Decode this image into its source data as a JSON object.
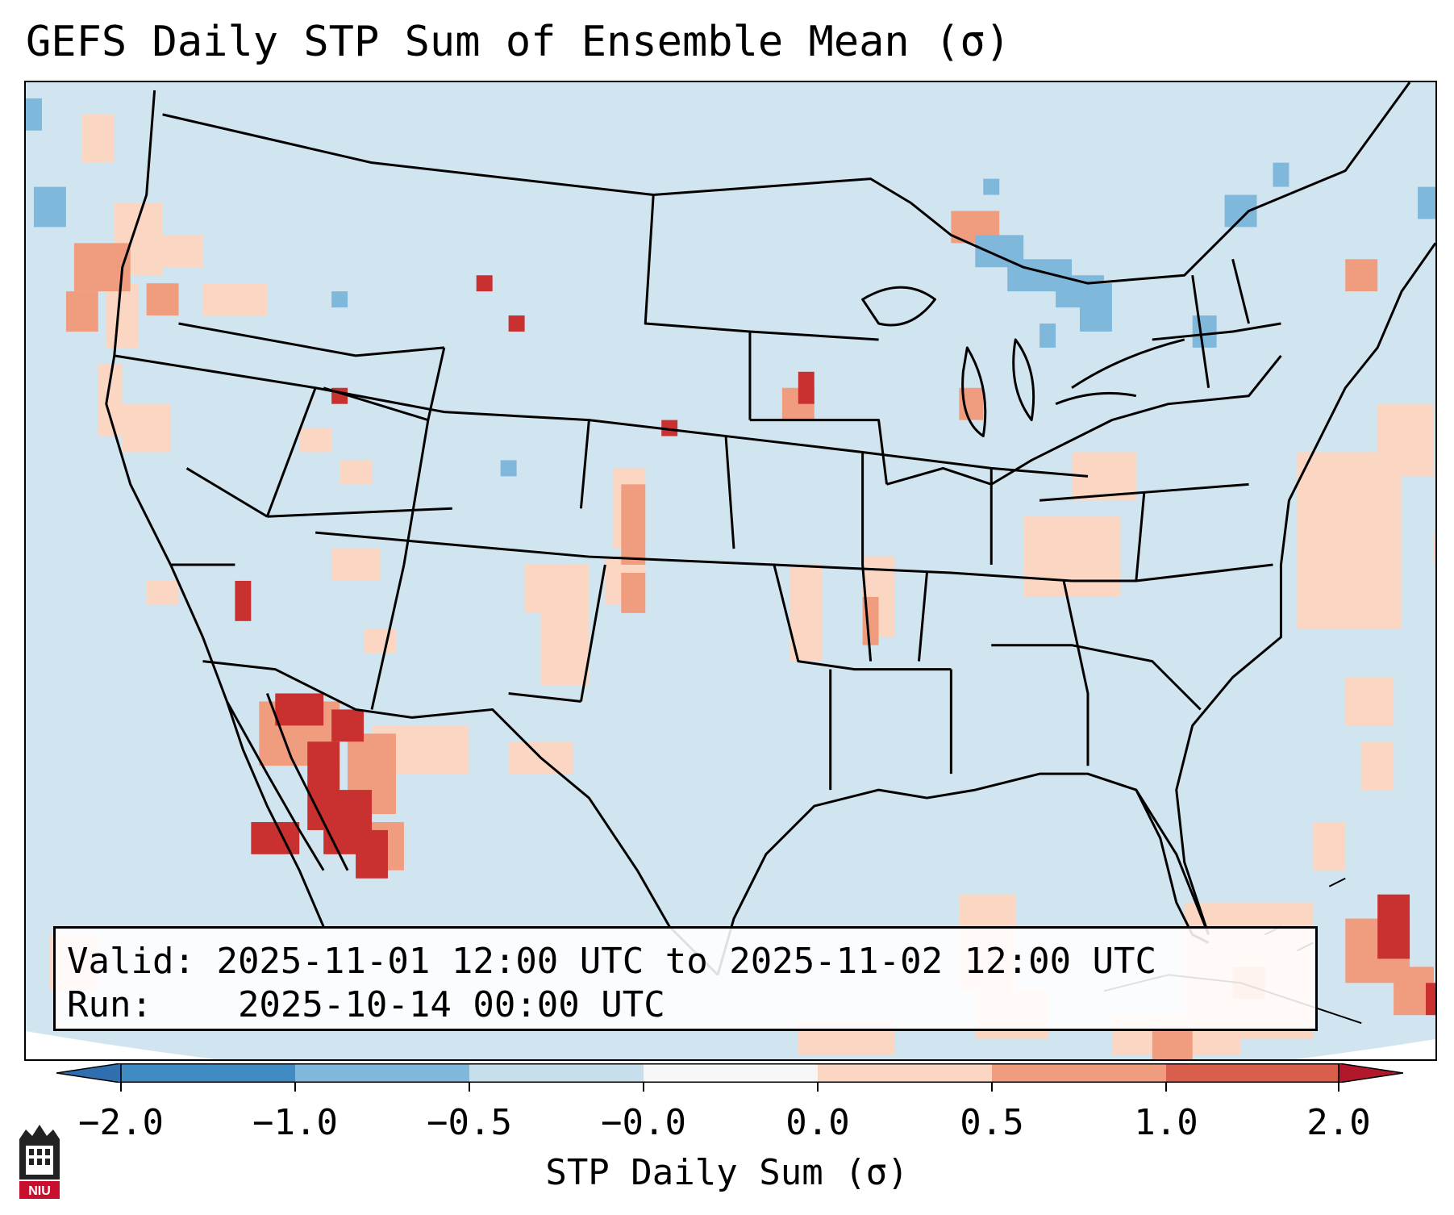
{
  "title": "GEFS Daily STP Sum of Ensemble Mean (σ)",
  "info": {
    "valid_label": "Valid:",
    "valid_value": "2025-11-01 12:00 UTC to 2025-11-02 12:00 UTC",
    "run_label": "Run:",
    "run_value": "2025-10-14 00:00 UTC"
  },
  "colorbar": {
    "label": "STP Daily Sum (σ)",
    "ticks": [
      "−2.0",
      "−1.0",
      "−0.5",
      "−0.0",
      "0.0",
      "0.5",
      "1.0",
      "2.0"
    ],
    "colors": [
      "#3f8bc2",
      "#7fb8da",
      "#c7dfed",
      "#f7f7f7",
      "#fbd6c2",
      "#f09c7f",
      "#d95f4d"
    ],
    "under_color": "#2f6fb0",
    "over_color": "#b2182b"
  },
  "map": {
    "background_color": "#d1e5f0",
    "land_outline_color": "#000000"
  },
  "logo": {
    "text": "NIU"
  }
}
